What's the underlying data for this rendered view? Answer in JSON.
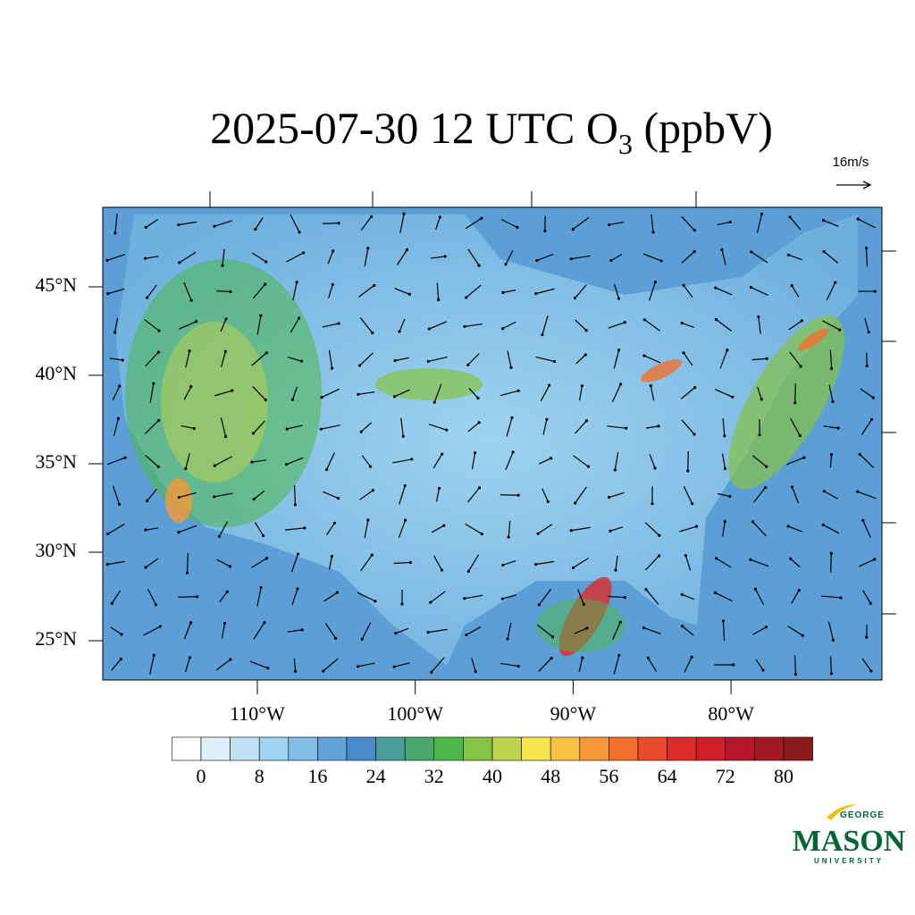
{
  "title": {
    "main": "2025-07-30 12 UTC O",
    "sub": "3",
    "tail": " (ppbV)"
  },
  "reference_vector": "16m/s",
  "lat_ticks": [
    {
      "value": 45,
      "label": "45°N"
    },
    {
      "value": 40,
      "label": "40°N"
    },
    {
      "value": 35,
      "label": "35°N"
    },
    {
      "value": 30,
      "label": "30°N"
    },
    {
      "value": 25,
      "label": "25°N"
    }
  ],
  "lon_ticks": [
    {
      "value": -110,
      "label": "110°W"
    },
    {
      "value": -100,
      "label": "100°W"
    },
    {
      "value": -90,
      "label": "90°W"
    },
    {
      "value": -80,
      "label": "80°W"
    }
  ],
  "colorbar": {
    "levels": [
      0,
      4,
      8,
      12,
      16,
      20,
      24,
      28,
      32,
      36,
      40,
      44,
      48,
      52,
      56,
      60,
      64,
      68,
      72,
      76,
      80
    ],
    "colors": [
      "#ffffff",
      "#ddf0fa",
      "#bfe3f5",
      "#9fd3ef",
      "#82bde6",
      "#62a4d9",
      "#4a8ccb",
      "#4a9d9a",
      "#4aa86c",
      "#4db84a",
      "#86c346",
      "#bfd24c",
      "#f7e550",
      "#f9c146",
      "#f7983a",
      "#f26f2e",
      "#e94b2b",
      "#dd2c28",
      "#cf1f2a",
      "#b7172a",
      "#a11a22",
      "#8b1a1a"
    ],
    "ticks": [
      0,
      8,
      16,
      24,
      32,
      40,
      48,
      56,
      64,
      72,
      80
    ]
  },
  "logo": {
    "top": "GEORGE",
    "name": "MASON",
    "bottom": "UNIVERSITY"
  }
}
